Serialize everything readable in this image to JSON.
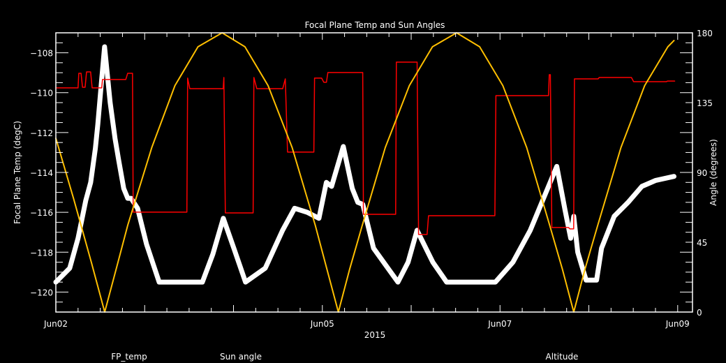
{
  "chart_data": {
    "type": "line",
    "title": "Focal Plane Temp and Sun Angles",
    "xlabel": "2015",
    "ylabel": "Focal Plane Temp (degC)",
    "y2label": "Angle (degrees)",
    "xlim": [
      "2015-06-02T00:00",
      "2015-06-09T04:00"
    ],
    "ylim": [
      -121,
      -107
    ],
    "y2lim": [
      0,
      180
    ],
    "x_ticks": [
      {
        "label": "Jun02",
        "at": "2015-06-02T00:00"
      },
      {
        "label": "Jun05",
        "at": "2015-06-05T00:00"
      },
      {
        "label": "Jun07",
        "at": "2015-06-07T00:00"
      },
      {
        "label": "Jun09",
        "at": "2015-06-09T00:00"
      }
    ],
    "y_ticks": [
      "-108",
      "-110",
      "-112",
      "-114",
      "-116",
      "-118",
      "-120"
    ],
    "y2_ticks": [
      "0",
      "45",
      "90",
      "135",
      "180"
    ],
    "grid": false,
    "background": "#000000",
    "legend_placement": "bottom",
    "series": [
      {
        "name": "FP_temp",
        "axis": "left",
        "color": "#ffffff",
        "marker": "asterisk",
        "points": [
          [
            "2015-06-02T00:00",
            -119.5
          ],
          [
            "2015-06-02T03:45",
            -118.8
          ],
          [
            "2015-06-02T06:00",
            -117.3
          ],
          [
            "2015-06-02T08:05",
            -115.4
          ],
          [
            "2015-06-02T09:25",
            -114.5
          ],
          [
            "2015-06-02T10:40",
            -112.8
          ],
          [
            "2015-06-02T11:20",
            -111.6
          ],
          [
            "2015-06-02T12:15",
            -109.6
          ],
          [
            "2015-06-02T13:10",
            -107.7
          ],
          [
            "2015-06-02T14:40",
            -110.5
          ],
          [
            "2015-06-02T16:00",
            -112.3
          ],
          [
            "2015-06-02T17:00",
            -113.4
          ],
          [
            "2015-06-02T18:20",
            -114.8
          ],
          [
            "2015-06-02T19:25",
            -115.3
          ],
          [
            "2015-06-02T20:20",
            -115.3
          ],
          [
            "2015-06-02T22:05",
            -115.8
          ],
          [
            "2015-06-03T00:30",
            -117.6
          ],
          [
            "2015-06-03T03:55",
            -119.5
          ],
          [
            "2015-06-03T15:35",
            -119.5
          ],
          [
            "2015-06-03T18:25",
            -118.1
          ],
          [
            "2015-06-03T21:15",
            -116.3
          ],
          [
            "2015-06-04T00:05",
            -117.8
          ],
          [
            "2015-06-04T03:15",
            -119.5
          ],
          [
            "2015-06-04T08:35",
            -118.8
          ],
          [
            "2015-06-04T13:15",
            -116.9
          ],
          [
            "2015-06-04T16:30",
            -115.8
          ],
          [
            "2015-06-04T19:55",
            -116.0
          ],
          [
            "2015-06-04T23:05",
            -116.3
          ],
          [
            "2015-06-05T01:05",
            -114.5
          ],
          [
            "2015-06-05T02:30",
            -114.7
          ],
          [
            "2015-06-05T05:40",
            -112.7
          ],
          [
            "2015-06-05T08:05",
            -114.8
          ],
          [
            "2015-06-05T09:35",
            -115.5
          ],
          [
            "2015-06-05T10:55",
            -115.6
          ],
          [
            "2015-06-05T13:50",
            -117.8
          ],
          [
            "2015-06-05T20:25",
            -119.5
          ],
          [
            "2015-06-05T23:10",
            -118.5
          ],
          [
            "2015-06-06T01:35",
            -116.9
          ],
          [
            "2015-06-06T05:50",
            -118.5
          ],
          [
            "2015-06-06T09:35",
            -119.5
          ],
          [
            "2015-06-06T22:45",
            -119.5
          ],
          [
            "2015-06-07T03:30",
            -118.5
          ],
          [
            "2015-06-07T08:10",
            -116.9
          ],
          [
            "2015-06-07T15:20",
            -113.7
          ],
          [
            "2015-06-07T17:35",
            -115.9
          ],
          [
            "2015-06-07T19:05",
            -117.3
          ],
          [
            "2015-06-07T19:55",
            -116.2
          ],
          [
            "2015-06-07T21:00",
            -118.0
          ],
          [
            "2015-06-07T23:15",
            -119.4
          ],
          [
            "2015-06-08T02:05",
            -119.4
          ],
          [
            "2015-06-08T03:25",
            -117.8
          ],
          [
            "2015-06-08T06:50",
            -116.2
          ],
          [
            "2015-06-08T10:35",
            -115.5
          ],
          [
            "2015-06-08T14:20",
            -114.7
          ],
          [
            "2015-06-08T18:05",
            -114.4
          ],
          [
            "2015-06-08T23:00",
            -114.2
          ]
        ]
      },
      {
        "name": "Sun angle",
        "axis": "right",
        "color": "#ff0000",
        "points": [
          [
            "2015-06-02T00:00",
            144.5
          ],
          [
            "2015-06-02T06:00",
            144.5
          ],
          [
            "2015-06-02T06:12",
            153.9
          ],
          [
            "2015-06-02T06:48",
            153.9
          ],
          [
            "2015-06-02T07:12",
            144.9
          ],
          [
            "2015-06-02T07:54",
            144.9
          ],
          [
            "2015-06-02T08:18",
            154.8
          ],
          [
            "2015-06-02T09:24",
            154.8
          ],
          [
            "2015-06-02T09:48",
            144.5
          ],
          [
            "2015-06-02T12:24",
            144.5
          ],
          [
            "2015-06-02T12:36",
            149.9
          ],
          [
            "2015-06-02T18:54",
            149.9
          ],
          [
            "2015-06-02T19:24",
            153.9
          ],
          [
            "2015-06-02T20:42",
            153.9
          ],
          [
            "2015-06-02T20:54",
            64.4
          ],
          [
            "2015-06-03T11:24",
            64.4
          ],
          [
            "2015-06-03T11:36",
            150.8
          ],
          [
            "2015-06-03T12:12",
            144.0
          ],
          [
            "2015-06-03T21:12",
            144.0
          ],
          [
            "2015-06-03T21:24",
            151.2
          ],
          [
            "2015-06-03T21:48",
            63.9
          ],
          [
            "2015-06-04T05:18",
            63.9
          ],
          [
            "2015-06-04T05:30",
            151.2
          ],
          [
            "2015-06-04T06:18",
            144.0
          ],
          [
            "2015-06-04T13:18",
            144.0
          ],
          [
            "2015-06-04T14:00",
            150.3
          ],
          [
            "2015-06-04T14:36",
            103.1
          ],
          [
            "2015-06-04T21:42",
            103.1
          ],
          [
            "2015-06-04T21:54",
            150.8
          ],
          [
            "2015-06-04T23:48",
            150.8
          ],
          [
            "2015-06-05T00:24",
            148.1
          ],
          [
            "2015-06-05T01:06",
            148.1
          ],
          [
            "2015-06-05T01:30",
            154.4
          ],
          [
            "2015-06-05T10:54",
            154.4
          ],
          [
            "2015-06-05T11:06",
            63.0
          ],
          [
            "2015-06-05T19:48",
            63.0
          ],
          [
            "2015-06-05T20:00",
            161.1
          ],
          [
            "2015-06-06T01:36",
            161.1
          ],
          [
            "2015-06-06T02:00",
            50.0
          ],
          [
            "2015-06-06T04:18",
            50.0
          ],
          [
            "2015-06-06T04:42",
            62.1
          ],
          [
            "2015-06-06T22:36",
            62.1
          ],
          [
            "2015-06-06T22:54",
            139.5
          ],
          [
            "2015-06-07T13:06",
            139.5
          ],
          [
            "2015-06-07T13:18",
            153.0
          ],
          [
            "2015-06-07T13:36",
            153.0
          ],
          [
            "2015-06-07T14:00",
            54.5
          ],
          [
            "2015-06-07T18:30",
            54.5
          ],
          [
            "2015-06-07T18:54",
            53.6
          ],
          [
            "2015-06-07T19:54",
            53.6
          ],
          [
            "2015-06-07T20:06",
            150.3
          ],
          [
            "2015-06-08T02:30",
            150.3
          ],
          [
            "2015-06-08T02:48",
            151.2
          ],
          [
            "2015-06-08T11:30",
            151.2
          ],
          [
            "2015-06-08T12:06",
            148.5
          ],
          [
            "2015-06-08T20:54",
            148.5
          ],
          [
            "2015-06-08T21:18",
            148.9
          ],
          [
            "2015-06-08T23:12",
            148.9
          ]
        ]
      },
      {
        "name": "Altitude",
        "axis": "right",
        "color": "#ffbf00",
        "points": [
          [
            "2015-06-02T00:00",
            112
          ],
          [
            "2015-06-02T04:48",
            73
          ],
          [
            "2015-06-02T09:36",
            32
          ],
          [
            "2015-06-02T13:12",
            0
          ],
          [
            "2015-06-02T16:20",
            28
          ],
          [
            "2015-06-02T19:25",
            56
          ],
          [
            "2015-06-03T01:55",
            106
          ],
          [
            "2015-06-03T08:10",
            146
          ],
          [
            "2015-06-03T14:24",
            171
          ],
          [
            "2015-06-03T20:55",
            180
          ],
          [
            "2015-06-04T03:05",
            171
          ],
          [
            "2015-06-04T09:20",
            146
          ],
          [
            "2015-06-04T15:50",
            106
          ],
          [
            "2015-06-04T22:05",
            56
          ],
          [
            "2015-06-05T01:12",
            28
          ],
          [
            "2015-06-05T04:20",
            0
          ],
          [
            "2015-06-05T07:25",
            28
          ],
          [
            "2015-06-05T10:48",
            56
          ],
          [
            "2015-06-05T17:00",
            106
          ],
          [
            "2015-06-05T23:30",
            146
          ],
          [
            "2015-06-06T05:45",
            171
          ],
          [
            "2015-06-06T12:15",
            180
          ],
          [
            "2015-06-06T18:30",
            171
          ],
          [
            "2015-06-07T00:45",
            146
          ],
          [
            "2015-06-07T07:12",
            106
          ],
          [
            "2015-06-07T13:25",
            56
          ],
          [
            "2015-06-07T16:48",
            28
          ],
          [
            "2015-06-07T19:55",
            0
          ],
          [
            "2015-06-07T23:00",
            28
          ],
          [
            "2015-06-08T02:24",
            56
          ],
          [
            "2015-06-08T08:40",
            106
          ],
          [
            "2015-06-08T15:05",
            146
          ],
          [
            "2015-06-08T21:20",
            171
          ],
          [
            "2015-06-08T23:00",
            175
          ]
        ]
      }
    ]
  }
}
